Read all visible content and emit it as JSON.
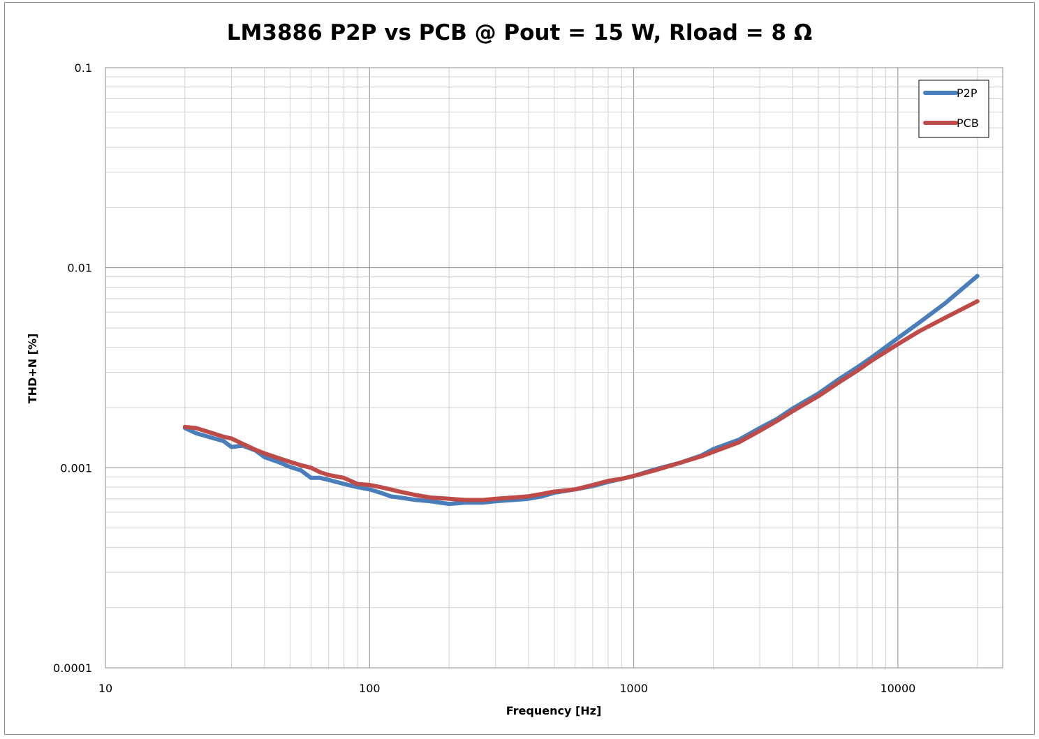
{
  "chart_data": {
    "type": "line",
    "title": "LM3886 P2P vs PCB @ Pout = 15 W, Rload = 8 Ω",
    "xlabel": "Frequency [Hz]",
    "ylabel": "THD+N [%]",
    "xscale": "log",
    "yscale": "log",
    "xlim": [
      10,
      20000
    ],
    "ylim": [
      0.0001,
      0.1
    ],
    "x_ticks": [
      "10",
      "100",
      "1000",
      "10000"
    ],
    "y_ticks": [
      "0.1",
      "0.01",
      "0.001",
      "0.0001"
    ],
    "grid": true,
    "legend_position": "top-right",
    "series": [
      {
        "name": "P2P",
        "color": "#4a7ebb",
        "points": [
          [
            20,
            0.00158
          ],
          [
            22,
            0.00149
          ],
          [
            25,
            0.00142
          ],
          [
            28,
            0.00136
          ],
          [
            30,
            0.00127
          ],
          [
            33,
            0.00129
          ],
          [
            37,
            0.00122
          ],
          [
            40,
            0.00113
          ],
          [
            45,
            0.00107
          ],
          [
            50,
            0.00101
          ],
          [
            55,
            0.00097
          ],
          [
            60,
            0.00089
          ],
          [
            65,
            0.00089
          ],
          [
            70,
            0.00087
          ],
          [
            80,
            0.00083
          ],
          [
            90,
            0.0008
          ],
          [
            100,
            0.00078
          ],
          [
            110,
            0.00075
          ],
          [
            120,
            0.00072
          ],
          [
            130,
            0.00071
          ],
          [
            150,
            0.00069
          ],
          [
            170,
            0.00068
          ],
          [
            200,
            0.00066
          ],
          [
            230,
            0.00067
          ],
          [
            270,
            0.00067
          ],
          [
            300,
            0.00068
          ],
          [
            350,
            0.00069
          ],
          [
            400,
            0.0007
          ],
          [
            450,
            0.00072
          ],
          [
            500,
            0.00075
          ],
          [
            600,
            0.00078
          ],
          [
            700,
            0.00081
          ],
          [
            800,
            0.00085
          ],
          [
            900,
            0.00088
          ],
          [
            1000,
            0.00091
          ],
          [
            1200,
            0.00098
          ],
          [
            1500,
            0.00106
          ],
          [
            1800,
            0.00115
          ],
          [
            2000,
            0.00124
          ],
          [
            2500,
            0.00138
          ],
          [
            3000,
            0.00158
          ],
          [
            3500,
            0.00176
          ],
          [
            4000,
            0.00198
          ],
          [
            5000,
            0.00235
          ],
          [
            6000,
            0.00278
          ],
          [
            7000,
            0.00317
          ],
          [
            8000,
            0.00358
          ],
          [
            10000,
            0.00445
          ],
          [
            12000,
            0.0053
          ],
          [
            15000,
            0.0066
          ],
          [
            20000,
            0.0091
          ]
        ]
      },
      {
        "name": "PCB",
        "color": "#be4b48",
        "points": [
          [
            20,
            0.0016
          ],
          [
            22,
            0.00158
          ],
          [
            25,
            0.0015
          ],
          [
            28,
            0.00143
          ],
          [
            30,
            0.0014
          ],
          [
            33,
            0.00132
          ],
          [
            37,
            0.00123
          ],
          [
            40,
            0.00118
          ],
          [
            45,
            0.00112
          ],
          [
            50,
            0.00107
          ],
          [
            55,
            0.00103
          ],
          [
            60,
            0.001
          ],
          [
            65,
            0.00095
          ],
          [
            70,
            0.00092
          ],
          [
            80,
            0.00089
          ],
          [
            90,
            0.00083
          ],
          [
            100,
            0.00082
          ],
          [
            110,
            0.0008
          ],
          [
            120,
            0.00078
          ],
          [
            130,
            0.00076
          ],
          [
            150,
            0.00073
          ],
          [
            170,
            0.00071
          ],
          [
            200,
            0.0007
          ],
          [
            230,
            0.00069
          ],
          [
            270,
            0.00069
          ],
          [
            300,
            0.0007
          ],
          [
            350,
            0.00071
          ],
          [
            400,
            0.00072
          ],
          [
            450,
            0.00074
          ],
          [
            500,
            0.00076
          ],
          [
            600,
            0.00078
          ],
          [
            700,
            0.00082
          ],
          [
            800,
            0.00086
          ],
          [
            900,
            0.00088
          ],
          [
            1000,
            0.00091
          ],
          [
            1200,
            0.00097
          ],
          [
            1500,
            0.00106
          ],
          [
            1800,
            0.00114
          ],
          [
            2000,
            0.0012
          ],
          [
            2500,
            0.00134
          ],
          [
            3000,
            0.00153
          ],
          [
            3500,
            0.00172
          ],
          [
            4000,
            0.00192
          ],
          [
            5000,
            0.00228
          ],
          [
            6000,
            0.00268
          ],
          [
            7000,
            0.00305
          ],
          [
            8000,
            0.00345
          ],
          [
            10000,
            0.00415
          ],
          [
            12000,
            0.0048
          ],
          [
            15000,
            0.0056
          ],
          [
            20000,
            0.0068
          ]
        ]
      }
    ]
  }
}
